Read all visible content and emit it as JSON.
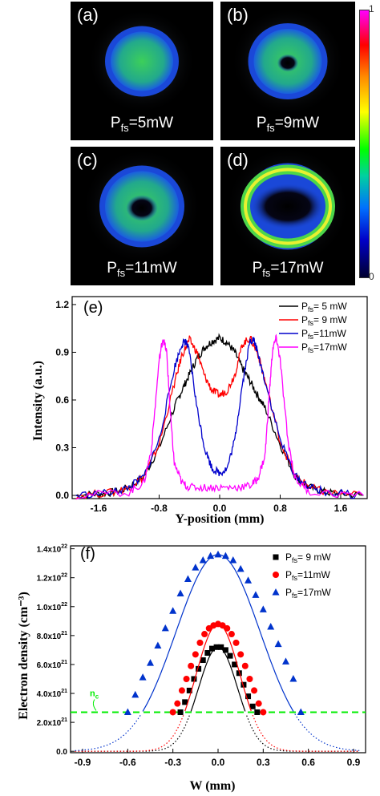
{
  "beam_panels": [
    {
      "label": "(a)",
      "p_sym": "P",
      "p_sub": "fs",
      "p_val": "=5mW",
      "ring": 0.0
    },
    {
      "label": "(b)",
      "p_sym": "P",
      "p_sub": "fs",
      "p_val": "=9mW",
      "ring": 0.35
    },
    {
      "label": "(c)",
      "p_sym": "P",
      "p_sub": "fs",
      "p_val": "=11mW",
      "ring": 0.7
    },
    {
      "label": "(d)",
      "p_sym": "P",
      "p_sub": "fs",
      "p_val": "=17mW",
      "ring": 1.0
    }
  ],
  "colorbar": {
    "max_label": "1",
    "min_label": "0"
  },
  "chart_data": [
    {
      "type": "line",
      "panel_label": "(e)",
      "xlabel": "Y-position (mm)",
      "ylabel": "Intensity (a.u.)",
      "xlim": [
        -1.95,
        1.95
      ],
      "ylim": [
        -0.02,
        1.25
      ],
      "xticks": [
        -1.6,
        -0.8,
        0.0,
        0.8,
        1.6
      ],
      "yticks": [
        0.0,
        0.3,
        0.6,
        0.9,
        1.2
      ],
      "xtick_labels": [
        "-1.6",
        "-0.8",
        "0.0",
        "0.8",
        "1.6"
      ],
      "ytick_labels": [
        "0.0",
        "0.3",
        "0.6",
        "0.9",
        "1.2"
      ],
      "legend_position": "top-right",
      "series": [
        {
          "name_sym": "P",
          "name_sub": "fs",
          "name_val": "= 5 mW",
          "color": "#000000",
          "x": [
            -1.9,
            -1.6,
            -1.4,
            -1.2,
            -1.0,
            -0.8,
            -0.6,
            -0.5,
            -0.4,
            -0.3,
            -0.2,
            -0.1,
            0.0,
            0.1,
            0.2,
            0.3,
            0.4,
            0.5,
            0.6,
            0.8,
            1.0,
            1.2,
            1.4,
            1.6,
            1.9
          ],
          "y": [
            0.0,
            0.01,
            0.02,
            0.05,
            0.12,
            0.3,
            0.55,
            0.66,
            0.76,
            0.86,
            0.93,
            0.97,
            0.99,
            0.96,
            0.9,
            0.8,
            0.72,
            0.63,
            0.55,
            0.32,
            0.12,
            0.05,
            0.02,
            0.01,
            0.0
          ]
        },
        {
          "name_sym": "P",
          "name_sub": "fs",
          "name_val": "= 9 mW",
          "color": "#ff0000",
          "x": [
            -1.9,
            -1.4,
            -1.2,
            -1.0,
            -0.8,
            -0.6,
            -0.5,
            -0.4,
            -0.3,
            -0.2,
            -0.1,
            0.0,
            0.1,
            0.2,
            0.3,
            0.4,
            0.5,
            0.6,
            0.8,
            1.0,
            1.2,
            1.4,
            1.9
          ],
          "y": [
            0.0,
            0.02,
            0.05,
            0.12,
            0.32,
            0.7,
            0.88,
            0.98,
            0.9,
            0.75,
            0.66,
            0.63,
            0.66,
            0.76,
            0.95,
            0.99,
            0.9,
            0.72,
            0.34,
            0.12,
            0.05,
            0.02,
            0.0
          ]
        },
        {
          "name_sym": "P",
          "name_sub": "fs",
          "name_val": "=11mW",
          "color": "#0000cc",
          "x": [
            -1.9,
            -1.4,
            -1.2,
            -1.0,
            -0.8,
            -0.6,
            -0.5,
            -0.45,
            -0.4,
            -0.3,
            -0.2,
            -0.1,
            0.0,
            0.1,
            0.2,
            0.3,
            0.4,
            0.45,
            0.5,
            0.6,
            0.8,
            1.0,
            1.2,
            1.4,
            1.9
          ],
          "y": [
            0.0,
            0.02,
            0.05,
            0.12,
            0.35,
            0.8,
            0.95,
            0.97,
            0.9,
            0.55,
            0.3,
            0.17,
            0.14,
            0.17,
            0.35,
            0.7,
            0.97,
            0.98,
            0.9,
            0.72,
            0.35,
            0.12,
            0.05,
            0.02,
            0.0
          ]
        },
        {
          "name_sym": "P",
          "name_sub": "fs",
          "name_val": "=17mW",
          "color": "#ff00ff",
          "x": [
            -1.9,
            -1.2,
            -1.0,
            -0.9,
            -0.8,
            -0.75,
            -0.7,
            -0.65,
            -0.6,
            -0.5,
            -0.4,
            -0.2,
            0.0,
            0.2,
            0.4,
            0.5,
            0.6,
            0.65,
            0.7,
            0.75,
            0.8,
            0.9,
            1.0,
            1.2,
            1.9
          ],
          "y": [
            0.0,
            0.02,
            0.08,
            0.3,
            0.85,
            0.99,
            0.9,
            0.5,
            0.2,
            0.08,
            0.05,
            0.05,
            0.05,
            0.05,
            0.06,
            0.1,
            0.25,
            0.6,
            0.92,
            0.99,
            0.85,
            0.35,
            0.1,
            0.02,
            0.0
          ]
        }
      ]
    },
    {
      "type": "scatter",
      "panel_label": "(f)",
      "xlabel": "W (mm)",
      "ylabel": "Electron density (cm⁻³)",
      "xlim": [
        -0.98,
        0.98
      ],
      "ylim": [
        -1e+20,
        1.42e+22
      ],
      "xticks": [
        -0.9,
        -0.6,
        -0.3,
        0.0,
        0.3,
        0.6,
        0.9
      ],
      "xtick_labels": [
        "-0.9",
        "-0.6",
        "-0.3",
        "0.0",
        "0.3",
        "0.6",
        "0.9"
      ],
      "yticks": [
        0,
        2e+21,
        4e+21,
        6e+21,
        8e+21,
        1e+22,
        1.2e+22,
        1.4e+22
      ],
      "ytick_labels": [
        {
          "m": "0.0",
          "e": ""
        },
        {
          "m": "2.0x10",
          "e": "21"
        },
        {
          "m": "4.0x10",
          "e": "21"
        },
        {
          "m": "6.0x10",
          "e": "21"
        },
        {
          "m": "8.0x10",
          "e": "21"
        },
        {
          "m": "1.0x10",
          "e": "22"
        },
        {
          "m": "1.2x10",
          "e": "22"
        },
        {
          "m": "1.4x10",
          "e": "22"
        }
      ],
      "legend_position": "top-right",
      "threshold": {
        "label_main": "n",
        "label_sub": "c",
        "value": 2.7e+21,
        "color": "#00ee00"
      },
      "series": [
        {
          "name_sym": "P",
          "name_sub": "fs",
          "name_val": "= 9 mW",
          "color": "#000000",
          "marker": "square",
          "peak": 7.2e+21,
          "sigma": 0.13,
          "x": [
            -0.25,
            -0.22,
            -0.19,
            -0.16,
            -0.13,
            -0.1,
            -0.07,
            -0.04,
            -0.01,
            0.02,
            0.05,
            0.08,
            0.11,
            0.14,
            0.17,
            0.2,
            0.23,
            0.26
          ],
          "y": [
            2.7e+21,
            3.4e+21,
            4.2e+21,
            5e+21,
            5.7e+21,
            6.3e+21,
            6.8e+21,
            7.1e+21,
            7.2e+21,
            7.2e+21,
            7e+21,
            6.6e+21,
            6e+21,
            5.4e+21,
            4.6e+21,
            3.8e+21,
            3.1e+21,
            2.7e+21
          ]
        },
        {
          "name_sym": "P",
          "name_sub": "fs",
          "name_val": "=11mW",
          "color": "#ff0000",
          "marker": "circle",
          "peak": 8.8e+21,
          "sigma": 0.145,
          "x": [
            -0.3,
            -0.27,
            -0.24,
            -0.21,
            -0.18,
            -0.15,
            -0.12,
            -0.09,
            -0.06,
            -0.03,
            0.0,
            0.03,
            0.06,
            0.09,
            0.12,
            0.15,
            0.18,
            0.21,
            0.24,
            0.27,
            0.3
          ],
          "y": [
            2.7e+21,
            3.3e+21,
            4.2e+21,
            5e+21,
            5.9e+21,
            6.7e+21,
            7.5e+21,
            8.1e+21,
            8.5e+21,
            8.7e+21,
            8.8e+21,
            8.7e+21,
            8.5e+21,
            8.1e+21,
            7.5e+21,
            6.7e+21,
            5.9e+21,
            5e+21,
            4.2e+21,
            3.3e+21,
            2.7e+21
          ]
        },
        {
          "name_sym": "P",
          "name_sub": "fs",
          "name_val": "=17mW",
          "color": "#0033cc",
          "marker": "triangle",
          "peak": 1.36e+22,
          "sigma": 0.28,
          "x": [
            -0.6,
            -0.55,
            -0.5,
            -0.45,
            -0.4,
            -0.35,
            -0.3,
            -0.25,
            -0.2,
            -0.15,
            -0.1,
            -0.05,
            0.0,
            0.05,
            0.1,
            0.15,
            0.2,
            0.25,
            0.3,
            0.35,
            0.4,
            0.45,
            0.5,
            0.55
          ],
          "y": [
            2.7e+21,
            3.9e+21,
            5.1e+21,
            6.1e+21,
            7.3e+21,
            8.5e+21,
            9.7e+21,
            1.09e+22,
            1.19e+22,
            1.27e+22,
            1.32e+22,
            1.35e+22,
            1.36e+22,
            1.35e+22,
            1.32e+22,
            1.26e+22,
            1.18e+22,
            1.08e+22,
            9.8e+21,
            8.6e+21,
            7.4e+21,
            6.2e+21,
            5e+21,
            2.7e+21
          ]
        }
      ]
    }
  ]
}
